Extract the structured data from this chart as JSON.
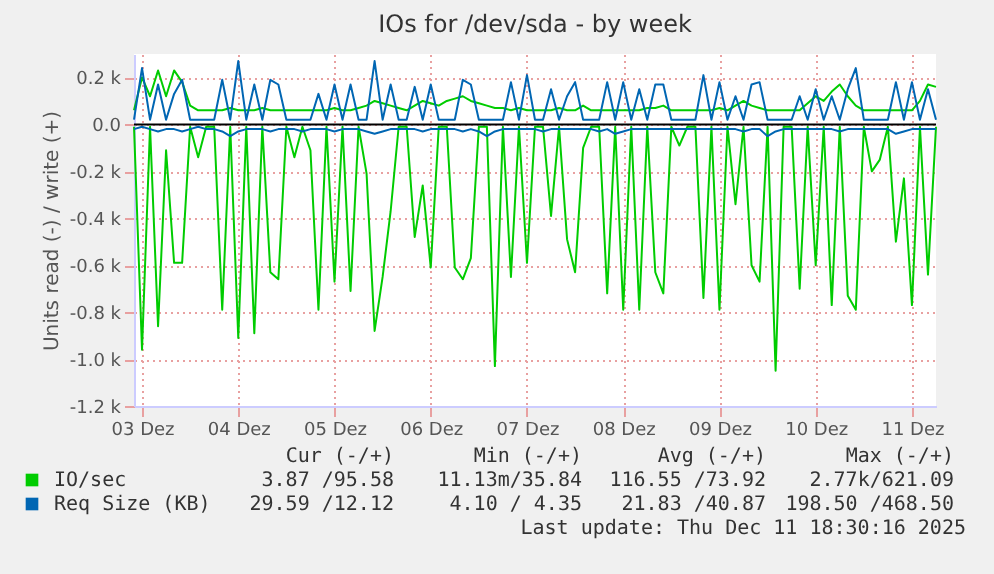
{
  "chart_data": {
    "type": "line",
    "title": "IOs for /dev/sda - by week",
    "ylabel": "Units read (-) / write (+)",
    "x": [
      "2025-12-02T22:00",
      "2025-12-03T00:00",
      "2025-12-03T02:00",
      "2025-12-03T04:00",
      "2025-12-03T06:00",
      "2025-12-03T08:00",
      "2025-12-03T10:00",
      "2025-12-03T12:00",
      "2025-12-03T14:00",
      "2025-12-03T16:00",
      "2025-12-03T18:00",
      "2025-12-03T20:00",
      "2025-12-03T22:00",
      "2025-12-04T00:00",
      "2025-12-04T02:00",
      "2025-12-04T04:00",
      "2025-12-04T06:00",
      "2025-12-04T08:00",
      "2025-12-04T10:00",
      "2025-12-04T12:00",
      "2025-12-04T14:00",
      "2025-12-04T16:00",
      "2025-12-04T18:00",
      "2025-12-04T20:00",
      "2025-12-04T22:00",
      "2025-12-05T00:00",
      "2025-12-05T02:00",
      "2025-12-05T04:00",
      "2025-12-05T06:00",
      "2025-12-05T08:00",
      "2025-12-05T10:00",
      "2025-12-05T12:00",
      "2025-12-05T14:00",
      "2025-12-05T16:00",
      "2025-12-05T18:00",
      "2025-12-05T20:00",
      "2025-12-05T22:00",
      "2025-12-06T00:00",
      "2025-12-06T02:00",
      "2025-12-06T04:00",
      "2025-12-06T06:00",
      "2025-12-06T08:00",
      "2025-12-06T10:00",
      "2025-12-06T12:00",
      "2025-12-06T14:00",
      "2025-12-06T16:00",
      "2025-12-06T18:00",
      "2025-12-06T20:00",
      "2025-12-06T22:00",
      "2025-12-07T00:00",
      "2025-12-07T02:00",
      "2025-12-07T04:00",
      "2025-12-07T06:00",
      "2025-12-07T08:00",
      "2025-12-07T10:00",
      "2025-12-07T12:00",
      "2025-12-07T14:00",
      "2025-12-07T16:00",
      "2025-12-07T18:00",
      "2025-12-07T20:00",
      "2025-12-07T22:00",
      "2025-12-08T00:00",
      "2025-12-08T02:00",
      "2025-12-08T04:00",
      "2025-12-08T06:00",
      "2025-12-08T08:00",
      "2025-12-08T10:00",
      "2025-12-08T12:00",
      "2025-12-08T14:00",
      "2025-12-08T16:00",
      "2025-12-08T18:00",
      "2025-12-08T20:00",
      "2025-12-08T22:00",
      "2025-12-09T00:00",
      "2025-12-09T02:00",
      "2025-12-09T04:00",
      "2025-12-09T06:00",
      "2025-12-09T08:00",
      "2025-12-09T10:00",
      "2025-12-09T12:00",
      "2025-12-09T14:00",
      "2025-12-09T16:00",
      "2025-12-09T18:00",
      "2025-12-09T20:00",
      "2025-12-09T22:00",
      "2025-12-10T00:00",
      "2025-12-10T02:00",
      "2025-12-10T04:00",
      "2025-12-10T06:00",
      "2025-12-10T08:00",
      "2025-12-10T10:00",
      "2025-12-10T12:00",
      "2025-12-10T14:00",
      "2025-12-10T16:00",
      "2025-12-10T18:00",
      "2025-12-10T20:00",
      "2025-12-10T22:00",
      "2025-12-11T00:00",
      "2025-12-11T02:00",
      "2025-12-11T04:00",
      "2025-12-11T06:00"
    ],
    "series": [
      {
        "name": "IO/sec",
        "color": "#00cc00",
        "values": [
          0.06,
          0.2,
          0.12,
          0.23,
          0.12,
          0.23,
          0.18,
          0.08,
          0.06,
          0.06,
          0.06,
          0.06,
          0.07,
          0.06,
          0.06,
          0.06,
          0.07,
          0.06,
          0.06,
          0.06,
          0.06,
          0.06,
          0.06,
          0.06,
          0.06,
          0.07,
          0.06,
          0.06,
          0.07,
          0.08,
          0.1,
          0.09,
          0.08,
          0.07,
          0.06,
          0.08,
          0.1,
          0.09,
          0.08,
          0.1,
          0.11,
          0.12,
          0.1,
          0.09,
          0.08,
          0.07,
          0.07,
          0.06,
          0.07,
          0.06,
          0.06,
          0.06,
          0.06,
          0.07,
          0.06,
          0.06,
          0.08,
          0.06,
          0.06,
          0.06,
          0.06,
          0.06,
          0.06,
          0.06,
          0.07,
          0.07,
          0.08,
          0.06,
          0.06,
          0.06,
          0.06,
          0.06,
          0.06,
          0.07,
          0.06,
          0.08,
          0.1,
          0.08,
          0.07,
          0.06,
          0.06,
          0.06,
          0.06,
          0.06,
          0.09,
          0.12,
          0.1,
          0.14,
          0.17,
          0.12,
          0.08,
          0.06,
          0.06,
          0.06,
          0.06,
          0.06,
          0.06,
          0.06,
          0.1,
          0.17,
          0.16
        ]
      },
      {
        "color": "#00cc00",
        "values": [
          -0.01,
          -0.96,
          -0.01,
          -0.86,
          -0.11,
          -0.59,
          -0.59,
          -0.01,
          -0.14,
          -0.01,
          -0.01,
          -0.79,
          -0.01,
          -0.91,
          -0.01,
          -0.89,
          -0.01,
          -0.63,
          -0.66,
          -0.01,
          -0.14,
          -0.01,
          -0.11,
          -0.79,
          -0.01,
          -0.67,
          -0.01,
          -0.71,
          -0.01,
          -0.21,
          -0.88,
          -0.65,
          -0.37,
          -0.01,
          -0.01,
          -0.48,
          -0.26,
          -0.61,
          -0.01,
          -0.01,
          -0.61,
          -0.66,
          -0.57,
          -0.01,
          -0.01,
          -1.03,
          -0.01,
          -0.65,
          -0.01,
          -0.59,
          -0.01,
          -0.01,
          -0.39,
          -0.01,
          -0.49,
          -0.63,
          -0.1,
          -0.01,
          -0.01,
          -0.72,
          -0.01,
          -0.79,
          -0.01,
          -0.79,
          -0.01,
          -0.63,
          -0.72,
          -0.01,
          -0.09,
          -0.01,
          -0.01,
          -0.74,
          -0.01,
          -0.79,
          -0.01,
          -0.34,
          -0.01,
          -0.6,
          -0.67,
          -0.01,
          -1.05,
          -0.01,
          -0.01,
          -0.7,
          -0.01,
          -0.6,
          -0.01,
          -0.77,
          -0.01,
          -0.73,
          -0.79,
          -0.01,
          -0.2,
          -0.15,
          -0.01,
          -0.5,
          -0.23,
          -0.77,
          -0.01,
          -0.64,
          -0.01
        ]
      },
      {
        "name": "Req Size (KB)",
        "color": "#0066b3",
        "values": [
          0.02,
          0.24,
          0.02,
          0.17,
          0.02,
          0.13,
          0.19,
          0.02,
          0.02,
          0.02,
          0.02,
          0.19,
          0.02,
          0.27,
          0.02,
          0.17,
          0.02,
          0.19,
          0.17,
          0.02,
          0.02,
          0.02,
          0.02,
          0.13,
          0.02,
          0.17,
          0.02,
          0.17,
          0.02,
          0.02,
          0.27,
          0.02,
          0.17,
          0.02,
          0.02,
          0.16,
          0.02,
          0.17,
          0.02,
          0.02,
          0.02,
          0.19,
          0.17,
          0.02,
          0.02,
          0.02,
          0.02,
          0.18,
          0.02,
          0.21,
          0.02,
          0.02,
          0.15,
          0.02,
          0.12,
          0.18,
          0.02,
          0.02,
          0.02,
          0.18,
          0.02,
          0.18,
          0.02,
          0.15,
          0.02,
          0.17,
          0.17,
          0.02,
          0.02,
          0.02,
          0.02,
          0.21,
          0.02,
          0.18,
          0.02,
          0.12,
          0.02,
          0.17,
          0.18,
          0.02,
          0.02,
          0.02,
          0.02,
          0.12,
          0.02,
          0.15,
          0.02,
          0.12,
          0.02,
          0.15,
          0.24,
          0.02,
          0.02,
          0.02,
          0.02,
          0.18,
          0.02,
          0.18,
          0.02,
          0.15,
          0.02
        ]
      },
      {
        "color": "#0066b3",
        "values": [
          -0.02,
          -0.01,
          -0.02,
          -0.03,
          -0.02,
          -0.02,
          -0.03,
          -0.02,
          -0.01,
          -0.02,
          -0.02,
          -0.03,
          -0.05,
          -0.03,
          -0.02,
          -0.02,
          -0.02,
          -0.03,
          -0.02,
          -0.02,
          -0.02,
          -0.03,
          -0.02,
          -0.02,
          -0.02,
          -0.03,
          -0.02,
          -0.02,
          -0.02,
          -0.03,
          -0.04,
          -0.03,
          -0.02,
          -0.02,
          -0.02,
          -0.02,
          -0.03,
          -0.02,
          -0.02,
          -0.02,
          -0.02,
          -0.03,
          -0.02,
          -0.03,
          -0.05,
          -0.03,
          -0.02,
          -0.02,
          -0.02,
          -0.02,
          -0.02,
          -0.03,
          -0.02,
          -0.02,
          -0.02,
          -0.02,
          -0.02,
          -0.02,
          -0.03,
          -0.02,
          -0.04,
          -0.03,
          -0.02,
          -0.02,
          -0.02,
          -0.02,
          -0.02,
          -0.02,
          -0.02,
          -0.02,
          -0.02,
          -0.02,
          -0.02,
          -0.02,
          -0.02,
          -0.02,
          -0.03,
          -0.02,
          -0.02,
          -0.05,
          -0.03,
          -0.02,
          -0.02,
          -0.02,
          -0.02,
          -0.02,
          -0.02,
          -0.02,
          -0.03,
          -0.02,
          -0.02,
          -0.02,
          -0.02,
          -0.02,
          -0.02,
          -0.04,
          -0.03,
          -0.02,
          -0.02,
          -0.02,
          -0.02
        ]
      }
    ],
    "xlim": [
      "2025-12-02T22:00",
      "2025-12-11T06:00"
    ],
    "xticks": [
      {
        "value": "2025-12-03T00:00",
        "label": "03 Dez"
      },
      {
        "value": "2025-12-04T00:00",
        "label": "04 Dez"
      },
      {
        "value": "2025-12-05T00:00",
        "label": "05 Dez"
      },
      {
        "value": "2025-12-06T00:00",
        "label": "06 Dez"
      },
      {
        "value": "2025-12-07T00:00",
        "label": "07 Dez"
      },
      {
        "value": "2025-12-08T00:00",
        "label": "08 Dez"
      },
      {
        "value": "2025-12-09T00:00",
        "label": "09 Dez"
      },
      {
        "value": "2025-12-10T00:00",
        "label": "10 Dez"
      },
      {
        "value": "2025-12-11T00:00",
        "label": "11 Dez"
      }
    ],
    "ylim": [
      -1.2,
      0.3
    ],
    "yticks": [
      {
        "value": -1.2,
        "label": "-1.2 k"
      },
      {
        "value": -1.0,
        "label": "-1.0 k"
      },
      {
        "value": -0.8,
        "label": "-0.8 k"
      },
      {
        "value": -0.6,
        "label": "-0.6 k"
      },
      {
        "value": -0.4,
        "label": "-0.4 k"
      },
      {
        "value": -0.2,
        "label": "-0.2 k"
      },
      {
        "value": 0,
        "label": "0.0"
      },
      {
        "value": 0.2,
        "label": "0.2 k"
      }
    ],
    "ref_lines": [
      {
        "axis": "y",
        "value": 0,
        "color": "#000000"
      }
    ],
    "grid": true,
    "legend": "bottom",
    "annotations": [
      "Cur (-/+)",
      "Min (-/+)",
      "Avg (-/+)",
      "Max (-/+)",
      "3.87 /95.58",
      "11.13m/35.84",
      "116.55 /73.92",
      "2.77k/621.09",
      "29.59 /12.12",
      "4.10 / 4.35",
      "21.83 /40.87",
      "198.50 /468.50",
      "Last update: Thu Dec 11 18:30:16 2025"
    ]
  }
}
